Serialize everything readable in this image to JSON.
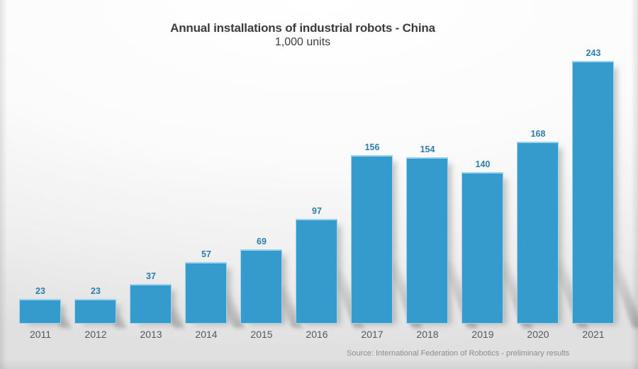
{
  "header": {
    "title": "Annual installations of industrial robots - China",
    "subtitle": "1,000 units"
  },
  "footer": {
    "source": "Source: International Federation of Robotics - preliminary results"
  },
  "colors": {
    "bar": "#359bcd",
    "bar_border_highlight": "#9fd4ec",
    "value_label": "#2e7da8",
    "year_label": "#575757",
    "title_text": "#3c3c3c",
    "source_text": "#8c8c8c",
    "bar_shadow": "rgba(100,100,100,0.35)",
    "background_top": "#ffffff",
    "background_edge": "#e0e0e0"
  },
  "chart_data": {
    "type": "bar",
    "title": "Annual installations of industrial robots - China",
    "subtitle": "1,000 units",
    "categories": [
      "2011",
      "2012",
      "2013",
      "2014",
      "2015",
      "2016",
      "2017",
      "2018",
      "2019",
      "2020",
      "2021"
    ],
    "values": [
      23,
      23,
      37,
      57,
      69,
      97,
      156,
      154,
      140,
      168,
      243
    ],
    "xlabel": "",
    "ylabel": "",
    "ylim": [
      0,
      250
    ],
    "grid": false,
    "legend": false,
    "data_labels_shown": true,
    "annotation": "Source: International Federation of Robotics - preliminary results"
  }
}
